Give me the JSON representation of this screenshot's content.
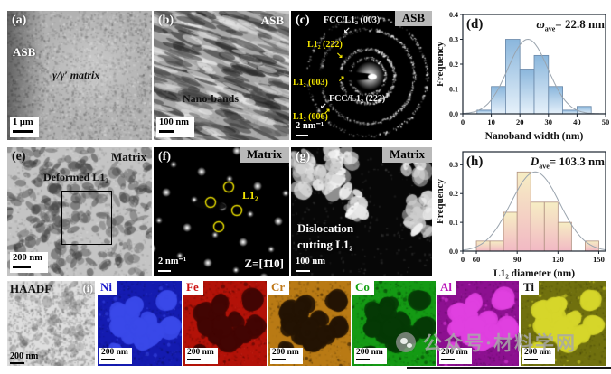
{
  "figure": {
    "watermark_text": "公众号·材料学网"
  },
  "panels": {
    "a": {
      "letter": "(a)",
      "region": "ASB",
      "annotation": "γ/γ′ matrix",
      "scalebar": "1 μm"
    },
    "b": {
      "letter": "(b)",
      "region": "ASB",
      "annotation": "Nano-bands",
      "scalebar": "100 nm"
    },
    "c": {
      "letter": "(c)",
      "region": "ASB",
      "scalebar": "2 nm⁻¹",
      "ring_labels": {
        "l1": "FCC/L1₂ (003)",
        "l2": "L1₂ (222)",
        "l3": "L1₂ (003)",
        "l4": "FCC/L1₂ (222)",
        "l5": "L1₂ (006)"
      }
    },
    "e": {
      "letter": "(e)",
      "region": "Matrix",
      "annotation": "Deformed L1₂",
      "scalebar": "200 nm"
    },
    "f": {
      "letter": "(f)",
      "region": "Matrix",
      "annotation": "L1₂",
      "zone_axis": "Z=[1̄10]",
      "scalebar": "2 nm⁻¹"
    },
    "g": {
      "letter": "(g)",
      "region": "Matrix",
      "annotation_line1": "Dislocation",
      "annotation_line2": "cutting L1₂",
      "scalebar": "100 nm"
    },
    "haadf": {
      "label": "HAADF",
      "letter": "(i)",
      "scalebar": "200 nm"
    },
    "maps": [
      {
        "element": "Ni",
        "label_color": "#1a1acc",
        "base_color": "#141bb0",
        "blob_color": "#3a49e8",
        "blob_bright": true,
        "scalebar": "200 nm"
      },
      {
        "element": "Fe",
        "label_color": "#cc1111",
        "base_color": "#b31208",
        "blob_color": "#420503",
        "blob_bright": false,
        "scalebar": "200 nm"
      },
      {
        "element": "Cr",
        "label_color": "#c07818",
        "base_color": "#b97a14",
        "blob_color": "#241403",
        "blob_bright": false,
        "scalebar": "200 nm"
      },
      {
        "element": "Co",
        "label_color": "#13a013",
        "base_color": "#149a14",
        "blob_color": "#053a05",
        "blob_bright": false,
        "scalebar": "200 nm"
      },
      {
        "element": "Al",
        "label_color": "#bb13bb",
        "base_color": "#8c1090",
        "blob_color": "#e040e0",
        "blob_bright": true,
        "scalebar": "200 nm"
      },
      {
        "element": "Ti",
        "label_color": "#111111",
        "base_color": "#70700e",
        "blob_color": "#d6d62a",
        "blob_bright": true,
        "scalebar": "200 nm"
      }
    ]
  },
  "chart_data": [
    {
      "type": "bar",
      "letter": "(d)",
      "title_symbol": "ω",
      "title_sub": "ave",
      "title_value": "= 22.8 nm",
      "xlabel": "Nanoband width (nm)",
      "ylabel": "Frequency",
      "bin_start": 5,
      "bin_width": 5,
      "values": [
        0.015,
        0.11,
        0.3,
        0.18,
        0.235,
        0.11,
        0.015,
        0.03
      ],
      "xlim": [
        0,
        50
      ],
      "ylim": [
        0,
        0.4
      ],
      "xticks": [
        {
          "v": 0,
          "label": "0"
        },
        {
          "v": 10,
          "label": "10"
        },
        {
          "v": 20,
          "label": "20"
        },
        {
          "v": 30,
          "label": "30"
        },
        {
          "v": 40,
          "label": "40"
        },
        {
          "v": 50,
          "label": "50"
        }
      ],
      "yticks": [
        0.0,
        0.1,
        0.2,
        0.3,
        0.4
      ],
      "curve": {
        "mean": 22.8,
        "sd": 7.0,
        "amp": 0.3
      },
      "legend": "none",
      "grid": false,
      "bar_top": "#8ab6dc",
      "bar_bottom": "#e6f1fa",
      "bar_stroke": "#6a88a8",
      "curve_color": "#9aa4ae"
    },
    {
      "type": "bar",
      "letter": "(h)",
      "title_symbol": "D",
      "title_sub": "ave",
      "title_value": "= 103.3 nm",
      "xlabel": "L1₂ diameter (nm)",
      "ylabel": "Frequency",
      "bin_start": 60,
      "bin_width": 10,
      "values": [
        0.035,
        0.035,
        0.135,
        0.275,
        0.17,
        0.17,
        0.1,
        0,
        0.035
      ],
      "xlim": [
        50,
        155
      ],
      "ylim": [
        0,
        0.345
      ],
      "xticks": [
        {
          "v": 50,
          "label": "0"
        },
        {
          "v": 60,
          "label": "60"
        },
        {
          "v": 90,
          "label": "90"
        },
        {
          "v": 120,
          "label": "120"
        },
        {
          "v": 150,
          "label": "150"
        }
      ],
      "yticks": [
        0.0,
        0.1,
        0.2,
        0.3
      ],
      "curve": {
        "mean": 103.3,
        "sd": 18.0,
        "amp": 0.275
      },
      "legend": "none",
      "grid": false,
      "bar_top": "#f6eec4",
      "bar_bottom": "#f2b9c4",
      "bar_stroke": "#b09080",
      "curve_color": "#9aa4ae"
    }
  ]
}
